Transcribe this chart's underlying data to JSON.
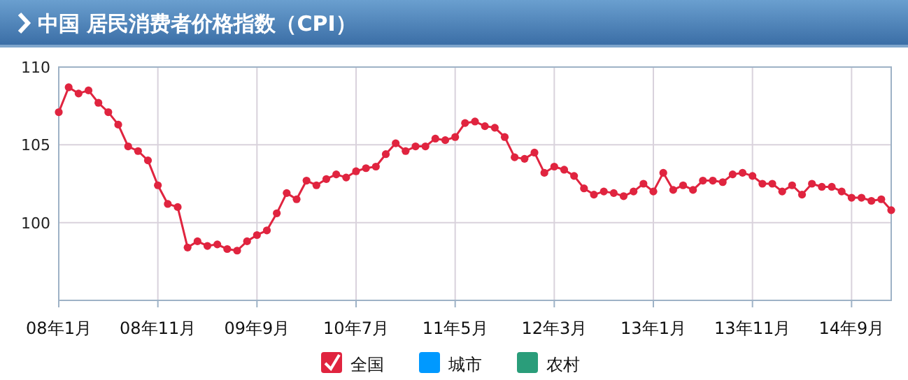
{
  "chart_data": {
    "type": "line",
    "title": "中国  居民消费者价格指数（CPI）",
    "x": [
      "2008-01",
      "2008-02",
      "2008-03",
      "2008-04",
      "2008-05",
      "2008-06",
      "2008-07",
      "2008-08",
      "2008-09",
      "2008-10",
      "2008-11",
      "2008-12",
      "2009-01",
      "2009-02",
      "2009-03",
      "2009-04",
      "2009-05",
      "2009-06",
      "2009-07",
      "2009-08",
      "2009-09",
      "2009-10",
      "2009-11",
      "2009-12",
      "2010-01",
      "2010-02",
      "2010-03",
      "2010-04",
      "2010-05",
      "2010-06",
      "2010-07",
      "2010-08",
      "2010-09",
      "2010-10",
      "2010-11",
      "2010-12",
      "2011-01",
      "2011-02",
      "2011-03",
      "2011-04",
      "2011-05",
      "2011-06",
      "2011-07",
      "2011-08",
      "2011-09",
      "2011-10",
      "2011-11",
      "2011-12",
      "2012-01",
      "2012-02",
      "2012-03",
      "2012-04",
      "2012-05",
      "2012-06",
      "2012-07",
      "2012-08",
      "2012-09",
      "2012-10",
      "2012-11",
      "2012-12",
      "2013-01",
      "2013-02",
      "2013-03",
      "2013-04",
      "2013-05",
      "2013-06",
      "2013-07",
      "2013-08",
      "2013-09",
      "2013-10",
      "2013-11",
      "2013-12",
      "2014-01",
      "2014-02",
      "2014-03",
      "2014-04",
      "2014-05",
      "2014-06",
      "2014-07",
      "2014-08",
      "2014-09",
      "2014-10",
      "2014-11",
      "2014-12",
      "2015-01"
    ],
    "series": [
      {
        "name": "全国",
        "color": "#e0243f",
        "values": [
          107.1,
          108.7,
          108.3,
          108.5,
          107.7,
          107.1,
          106.3,
          104.9,
          104.6,
          104.0,
          102.4,
          101.2,
          101.0,
          98.4,
          98.8,
          98.5,
          98.6,
          98.3,
          98.2,
          98.8,
          99.2,
          99.5,
          100.6,
          101.9,
          101.5,
          102.7,
          102.4,
          102.8,
          103.1,
          102.9,
          103.3,
          103.5,
          103.6,
          104.4,
          105.1,
          104.6,
          104.9,
          104.9,
          105.4,
          105.3,
          105.5,
          106.4,
          106.5,
          106.2,
          106.1,
          105.5,
          104.2,
          104.1,
          104.5,
          103.2,
          103.6,
          103.4,
          103.0,
          102.2,
          101.8,
          102.0,
          101.9,
          101.7,
          102.0,
          102.5,
          102.0,
          103.2,
          102.1,
          102.4,
          102.1,
          102.7,
          102.7,
          102.6,
          103.1,
          103.2,
          103.0,
          102.5,
          102.5,
          102.0,
          102.4,
          101.8,
          102.5,
          102.3,
          102.3,
          102.0,
          101.6,
          101.6,
          101.4,
          101.5,
          100.8
        ]
      },
      {
        "name": "城市",
        "color": "#0099ff",
        "values": [
          null,
          null,
          null,
          null,
          null,
          null,
          null,
          null,
          null,
          null,
          null,
          null,
          null,
          null,
          null,
          null,
          null,
          null,
          null,
          null,
          null,
          null,
          null,
          null,
          null,
          null,
          null,
          null,
          null,
          null,
          null,
          null,
          null,
          null,
          null,
          null,
          null,
          null,
          null,
          null,
          null,
          null,
          null,
          null,
          null,
          null,
          null,
          null,
          null,
          null,
          null,
          null,
          null,
          null,
          null,
          null,
          null,
          null,
          null,
          null,
          null,
          null,
          null,
          null,
          null,
          null,
          null,
          null,
          null,
          null,
          null,
          null,
          null,
          null,
          null,
          null,
          null,
          null,
          null,
          null,
          null,
          null,
          null,
          null,
          null
        ]
      },
      {
        "name": "农村",
        "color": "#2a9d7a",
        "values": [
          null,
          null,
          null,
          null,
          null,
          null,
          null,
          null,
          null,
          null,
          null,
          null,
          null,
          null,
          null,
          null,
          null,
          null,
          null,
          null,
          null,
          null,
          null,
          null,
          null,
          null,
          null,
          null,
          null,
          null,
          null,
          null,
          null,
          null,
          null,
          null,
          null,
          null,
          null,
          null,
          null,
          null,
          null,
          null,
          null,
          null,
          null,
          null,
          null,
          null,
          null,
          null,
          null,
          null,
          null,
          null,
          null,
          null,
          null,
          null,
          null,
          null,
          null,
          null,
          null,
          null,
          null,
          null,
          null,
          null,
          null,
          null,
          null,
          null,
          null,
          null,
          null,
          null,
          null,
          null,
          null,
          null,
          null,
          null,
          null
        ]
      }
    ],
    "xlim": [
      "2008-01",
      "2015-01"
    ],
    "xticks": [
      {
        "value": "2008-01",
        "label": "08年1月"
      },
      {
        "value": "2008-11",
        "label": "08年11月"
      },
      {
        "value": "2009-09",
        "label": "09年9月"
      },
      {
        "value": "2010-07",
        "label": "10年7月"
      },
      {
        "value": "2011-05",
        "label": "11年5月"
      },
      {
        "value": "2012-03",
        "label": "12年3月"
      },
      {
        "value": "2013-01",
        "label": "13年1月"
      },
      {
        "value": "2013-11",
        "label": "13年11月"
      },
      {
        "value": "2014-09",
        "label": "14年9月"
      }
    ],
    "ylim": [
      95,
      110
    ],
    "yticks": [
      100,
      105,
      110
    ],
    "grid": true,
    "legend": "bottom",
    "marker": "circle",
    "line_style": "solid"
  }
}
